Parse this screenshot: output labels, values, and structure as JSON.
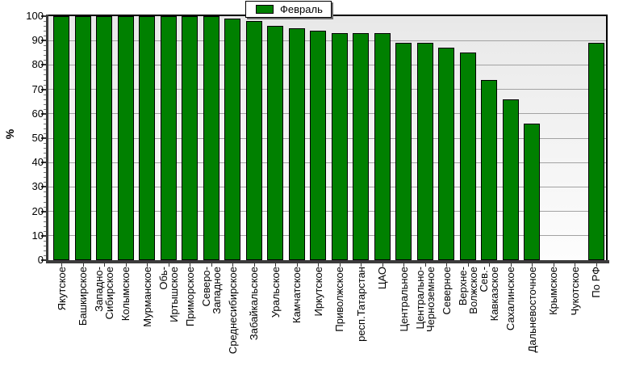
{
  "colors": {
    "bar_fill": "#008000",
    "bar_border": "#000000",
    "gridline": "#a2a2a2",
    "axis": "#3c3c3c",
    "plot_bg_top": "#e8e8e8",
    "plot_bg_bottom": "#fdfdfd"
  },
  "chart_data": {
    "type": "bar",
    "title": "",
    "xlabel": "",
    "ylabel": "%",
    "ylim": [
      0,
      100
    ],
    "ytick_step": 10,
    "ytick_minor_step": 2,
    "grid": true,
    "legend_position": "top-center",
    "xtick_rotation": 90,
    "categories": [
      "Якутское",
      "Башкирское",
      "Западно-\nСибирское",
      "Колымское",
      "Мурманское",
      "Обь-\nИртышское",
      "Приморское",
      "Северо-\nЗападное",
      "Среднесибирское",
      "Забайкальское",
      "Уральское",
      "Камчатское",
      "Иркутское",
      "Приволжское",
      "респ.Татарстан",
      "ЦАО",
      "Центральное",
      "Центрально-\nЧерноземное",
      "Северное",
      "Верхне-\nВолжское",
      "Сев.-\nКавказское",
      "Сахалинское",
      "Дальневосточное",
      "Крымское",
      "Чукотское",
      "По РФ"
    ],
    "series": [
      {
        "name": "Февраль",
        "color": "#008000",
        "values": [
          100,
          100,
          100,
          100,
          100,
          100,
          100,
          100,
          99,
          98,
          96,
          95,
          94,
          93,
          93,
          93,
          89,
          89,
          87,
          85,
          74,
          66,
          56,
          0,
          0,
          89
        ]
      }
    ]
  }
}
